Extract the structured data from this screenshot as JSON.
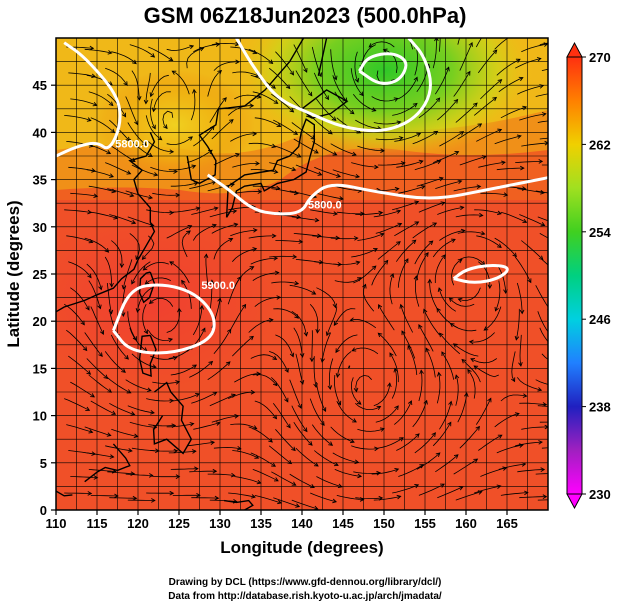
{
  "chart_data": {
    "type": "heatmap",
    "title": "GSM 06Z18Jun2023 (500.0hPa)",
    "xlabel": "Longitude (degrees)",
    "ylabel": "Latitude  (degrees)",
    "xlim": [
      110,
      170
    ],
    "ylim": [
      0,
      50
    ],
    "x_ticks": [
      110,
      115,
      120,
      125,
      130,
      135,
      140,
      145,
      150,
      155,
      160,
      165
    ],
    "y_ticks": [
      0,
      5,
      10,
      15,
      20,
      25,
      30,
      35,
      40,
      45
    ],
    "grid": true,
    "colorbar": {
      "min": 230,
      "max": 270,
      "ticks": [
        230,
        238,
        246,
        254,
        262,
        270
      ],
      "colors": [
        "#ff00ff",
        "#a020c0",
        "#2020c0",
        "#2080ff",
        "#00d0e0",
        "#00d080",
        "#40d020",
        "#a0e020",
        "#f0d000",
        "#ff8000",
        "#ff3010"
      ]
    },
    "contours": [
      {
        "label": "5900.0",
        "points": [
          [
            117,
            19
          ],
          [
            119,
            23.5
          ],
          [
            123,
            24
          ],
          [
            127,
            23
          ],
          [
            129.5,
            20.5
          ],
          [
            129,
            18
          ],
          [
            124,
            16.5
          ],
          [
            119,
            16.8
          ],
          [
            117,
            19
          ]
        ]
      },
      {
        "label": "5800.0",
        "points": [
          [
            128.5,
            35.5
          ],
          [
            131,
            34
          ],
          [
            134,
            31.8
          ],
          [
            137,
            31.3
          ],
          [
            140,
            31.5
          ],
          [
            141,
            33.2
          ],
          [
            143.5,
            34.7
          ],
          [
            149,
            33.7
          ],
          [
            156,
            32.8
          ],
          [
            163,
            34
          ],
          [
            170,
            35.2
          ]
        ]
      },
      {
        "label": "5800.0",
        "points": [
          [
            110,
            37.5
          ],
          [
            112.5,
            38.5
          ],
          [
            115,
            39
          ],
          [
            116.5,
            38
          ],
          [
            118,
            41
          ],
          [
            117.5,
            44
          ],
          [
            113.5,
            48
          ],
          [
            111,
            49.5
          ]
        ]
      },
      {
        "label": "",
        "points": [
          [
            158.5,
            24.5
          ],
          [
            160,
            25.5
          ],
          [
            163,
            26
          ],
          [
            165.5,
            25.7
          ],
          [
            164,
            24.5
          ],
          [
            161,
            24
          ],
          [
            158.5,
            24.5
          ]
        ]
      },
      {
        "label": "",
        "points": [
          [
            132,
            50
          ],
          [
            134,
            47
          ],
          [
            137,
            43.5
          ],
          [
            141,
            42
          ],
          [
            145,
            40.5
          ],
          [
            150,
            40
          ],
          [
            154,
            41.5
          ],
          [
            156,
            44.5
          ],
          [
            155,
            48
          ],
          [
            153,
            50
          ]
        ]
      },
      {
        "label": "",
        "points": [
          [
            147,
            46.5
          ],
          [
            148,
            48
          ],
          [
            151,
            48.5
          ],
          [
            153,
            47.5
          ],
          [
            152,
            45.5
          ],
          [
            149.5,
            45
          ],
          [
            147,
            46.5
          ]
        ]
      }
    ],
    "annotations": [
      "Drawing by DCL (https://www.gfd-dennou.org/library/dcl/)",
      "Data from http://database.rish.kyoto-u.ac.jp/arch/jmadata/"
    ]
  }
}
